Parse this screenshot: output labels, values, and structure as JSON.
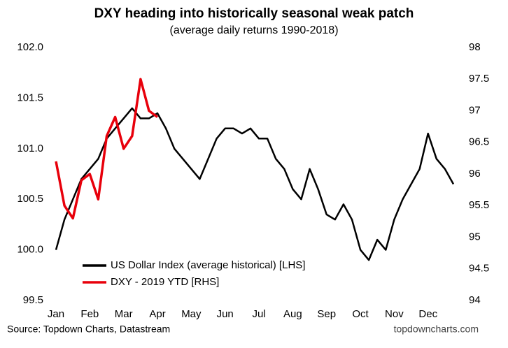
{
  "chart_data": {
    "type": "line",
    "title": "DXY heading into historically seasonal weak patch",
    "subtitle": "(average daily returns 1990-2018)",
    "categories": [
      "Jan",
      null,
      null,
      null,
      "Feb",
      null,
      null,
      null,
      "Mar",
      null,
      null,
      null,
      "Apr",
      null,
      null,
      null,
      "May",
      null,
      null,
      null,
      "Jun",
      null,
      null,
      null,
      "Jul",
      null,
      null,
      null,
      "Aug",
      null,
      null,
      null,
      "Sep",
      null,
      null,
      null,
      "Oct",
      null,
      null,
      null,
      "Nov",
      null,
      null,
      null,
      "Dec",
      null,
      null,
      null
    ],
    "series": [
      {
        "name": "US Dollar Index (average historical) [LHS]",
        "color": "#000000",
        "values": [
          100.0,
          100.3,
          100.5,
          100.7,
          100.8,
          100.9,
          101.1,
          101.2,
          101.3,
          101.4,
          101.3,
          101.3,
          101.35,
          101.2,
          101.0,
          100.9,
          100.8,
          100.7,
          100.9,
          101.1,
          101.2,
          101.2,
          101.15,
          101.2,
          101.1,
          101.1,
          100.9,
          100.8,
          100.6,
          100.5,
          100.8,
          100.6,
          100.35,
          100.3,
          100.45,
          100.3,
          100.0,
          99.9,
          100.1,
          100.0,
          100.3,
          100.5,
          100.65,
          100.8,
          101.15,
          100.9,
          100.8,
          100.65
        ]
      },
      {
        "name": "DXY - 2019 YTD [RHS]",
        "color": "#e8000b",
        "axis": "y2",
        "values": [
          96.2,
          95.5,
          95.3,
          95.9,
          96.0,
          95.6,
          96.6,
          96.9,
          96.4,
          96.6,
          97.5,
          97.0,
          96.9,
          null,
          null,
          null,
          null,
          null,
          null,
          null,
          null,
          null,
          null,
          null,
          null,
          null,
          null,
          null,
          null,
          null,
          null,
          null,
          null,
          null,
          null,
          null,
          null,
          null,
          null,
          null,
          null,
          null,
          null,
          null,
          null,
          null,
          null,
          null
        ]
      }
    ],
    "ylim": [
      99.5,
      102.0
    ],
    "yticks": [
      99.5,
      {
        "value": 100.0,
        "label": "100.0"
      },
      100.5,
      {
        "value": 101.0,
        "label": "101.0"
      },
      101.5,
      {
        "value": 102.0,
        "label": "102.0"
      }
    ],
    "y2lim": [
      94,
      98
    ],
    "y2ticks": [
      94,
      94.5,
      95,
      95.5,
      96,
      96.5,
      97,
      97.5,
      98
    ],
    "grid": false,
    "legend": "lower-left",
    "source": "Source: Topdown Charts, Datastream",
    "watermark": "topdowncharts.com"
  }
}
